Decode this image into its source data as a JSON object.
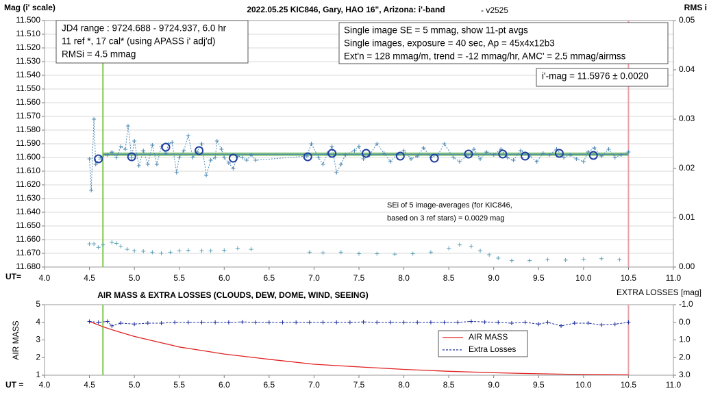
{
  "chart_data": [
    {
      "type": "scatter",
      "title": "2022.05.25 KIC846, Gary, HAO 16\", Arizona: i'-band",
      "subtitle": "- v2525",
      "ylabel": "Mag (i' scale)",
      "y2label": "RMS i",
      "xlabel": "UT=",
      "notes": [
        [
          "JD4 range : 9724.688 - 9724.937, 6.0  hr",
          "11 ref *, 17 cal* (using APASS i' adj'd)",
          "RMSi = 4.5 mmag"
        ],
        [
          "Single image SE = 5 mmag, show 11-pt avgs",
          "Single images, exposure = 40 sec, Ap = 45x4x12b3",
          "Ext'n = 128 mmag/m, trend = -12 mmag/hr, AMC' = 2.5 mmag/airmss"
        ],
        [
          "i'-mag = 11.5976 ± 0.0020"
        ],
        [
          "SEi of 5 image-averages (for KIC846,",
          "based on 3 ref stars) = 0.0029 mag"
        ]
      ],
      "xlim": [
        4,
        11
      ],
      "xticks": [
        {
          "value": 4,
          "label": "4.0"
        },
        4.5,
        {
          "value": 5,
          "label": "5.0"
        },
        5.5,
        {
          "value": 6,
          "label": "6.0"
        },
        6.5,
        {
          "value": 7,
          "label": "7.0"
        },
        7.5,
        {
          "value": 8,
          "label": "8.0"
        },
        8.5,
        {
          "value": 9,
          "label": "9.0"
        },
        9.5,
        {
          "value": 10,
          "label": "10.0"
        },
        10.5,
        {
          "value": 11,
          "label": "11.0"
        }
      ],
      "ylim": [
        11.68,
        11.5
      ],
      "yticks": [
        {
          "value": 11.5,
          "label": "11.500"
        },
        {
          "value": 11.51,
          "label": "11.510"
        },
        {
          "value": 11.52,
          "label": "11.520"
        },
        {
          "value": 11.53,
          "label": "11.530"
        },
        {
          "value": 11.54,
          "label": "11.540"
        },
        {
          "value": 11.55,
          "label": "11.550"
        },
        {
          "value": 11.56,
          "label": "11.560"
        },
        {
          "value": 11.57,
          "label": "11.570"
        },
        {
          "value": 11.58,
          "label": "11.580"
        },
        {
          "value": 11.59,
          "label": "11.590"
        },
        {
          "value": 11.6,
          "label": "11.600"
        },
        {
          "value": 11.61,
          "label": "11.610"
        },
        {
          "value": 11.62,
          "label": "11.620"
        },
        {
          "value": 11.63,
          "label": "11.630"
        },
        {
          "value": 11.64,
          "label": "11.640"
        },
        {
          "value": 11.65,
          "label": "11.650"
        },
        {
          "value": 11.66,
          "label": "11.660"
        },
        {
          "value": 11.67,
          "label": "11.670"
        },
        {
          "value": 11.68,
          "label": "11.680"
        }
      ],
      "y2lim": [
        0,
        0.05
      ],
      "y2ticks": [
        {
          "value": 0,
          "label": "0.00"
        },
        0.01,
        0.02,
        0.03,
        0.04,
        0.05
      ],
      "grid": true,
      "fit": 11.5976,
      "fit_color": "#7cbf6a",
      "vlines": [
        {
          "x": 4.65,
          "color": "#7ec850"
        },
        {
          "x": 10.5,
          "color": "#e8a0a8"
        }
      ],
      "series": [
        {
          "color": "#4a86b0",
          "marker": "plus",
          "line": "dotted",
          "x": [
            4.5,
            4.52,
            4.55,
            4.57,
            4.62,
            4.7,
            4.75,
            4.8,
            4.85,
            4.9,
            4.93,
            4.97,
            5.0,
            5.05,
            5.1,
            5.15,
            5.2,
            5.25,
            5.3,
            5.35,
            5.38,
            5.42,
            5.47,
            5.5,
            5.55,
            5.6,
            5.65,
            5.7,
            5.75,
            5.8,
            5.85,
            5.9,
            5.92,
            5.97,
            6.0,
            6.05,
            6.1,
            6.15,
            6.2,
            6.25,
            6.3,
            6.35,
            6.92,
            6.97,
            7.05,
            7.1,
            7.15,
            7.2,
            7.25,
            7.3,
            7.35,
            7.45,
            7.5,
            7.55,
            7.62,
            7.7,
            7.78,
            7.85,
            7.92,
            8.0,
            8.08,
            8.15,
            8.22,
            8.3,
            8.38,
            8.45,
            8.55,
            8.62,
            8.7,
            8.78,
            8.85,
            8.92,
            9.0,
            9.08,
            9.15,
            9.22,
            9.3,
            9.4,
            9.48,
            9.55,
            9.62,
            9.7,
            9.78,
            9.85,
            9.92,
            10.0,
            10.05,
            10.12,
            10.2,
            10.28,
            10.35,
            10.42,
            10.5
          ],
          "values": [
            11.601,
            11.624,
            11.572,
            11.605,
            11.6,
            11.598,
            11.596,
            11.6,
            11.592,
            11.594,
            11.577,
            11.6,
            11.588,
            11.606,
            11.595,
            11.605,
            11.591,
            11.605,
            11.592,
            11.597,
            11.59,
            11.589,
            11.611,
            11.6,
            11.595,
            11.584,
            11.6,
            11.596,
            11.59,
            11.613,
            11.602,
            11.6,
            11.588,
            11.594,
            11.6,
            11.604,
            11.608,
            11.599,
            11.6,
            11.602,
            11.598,
            11.602,
            11.599,
            11.59,
            11.6,
            11.605,
            11.597,
            11.592,
            11.611,
            11.605,
            11.598,
            11.595,
            11.592,
            11.601,
            11.598,
            11.59,
            11.597,
            11.603,
            11.598,
            11.595,
            11.601,
            11.599,
            11.593,
            11.6,
            11.598,
            11.59,
            11.6,
            11.603,
            11.599,
            11.594,
            11.601,
            11.596,
            11.598,
            11.594,
            11.6,
            11.602,
            11.595,
            11.599,
            11.603,
            11.597,
            11.598,
            11.594,
            11.6,
            11.598,
            11.601,
            11.603,
            11.596,
            11.593,
            11.599,
            11.594,
            11.6,
            11.598,
            11.596
          ]
        },
        {
          "color": "#1f3fa0",
          "marker": "circle",
          "x": [
            4.6,
            4.97,
            5.35,
            5.72,
            6.1,
            6.93,
            7.2,
            7.58,
            7.96,
            8.34,
            8.72,
            9.1,
            9.35,
            9.73,
            10.11
          ],
          "values": [
            11.601,
            11.5995,
            11.5925,
            11.595,
            11.6005,
            11.5995,
            11.597,
            11.597,
            11.599,
            11.6005,
            11.5975,
            11.5975,
            11.599,
            11.597,
            11.5985
          ]
        },
        {
          "color": "#5aa0b8",
          "marker": "plus",
          "axis": "y2",
          "x": [
            4.5,
            4.55,
            4.6,
            4.65,
            4.75,
            4.8,
            4.85,
            4.92,
            5.0,
            5.1,
            5.2,
            5.3,
            5.4,
            5.5,
            5.6,
            5.75,
            5.85,
            6.0,
            6.15,
            6.3,
            6.95,
            7.1,
            7.3,
            7.5,
            7.7,
            7.9,
            8.1,
            8.3,
            8.5,
            8.62,
            8.75,
            8.85,
            8.95,
            9.05,
            9.2,
            9.4,
            9.6,
            9.8,
            10.0,
            10.2,
            10.4
          ],
          "values": [
            0.0047,
            0.0047,
            0.004,
            0.0045,
            0.005,
            0.0048,
            0.0042,
            0.0036,
            0.0033,
            0.0032,
            0.003,
            0.0028,
            0.003,
            0.0033,
            0.0034,
            0.0033,
            0.0033,
            0.0034,
            0.0038,
            0.0036,
            0.003,
            0.0029,
            0.003,
            0.0027,
            0.0027,
            0.0026,
            0.0027,
            0.003,
            0.0038,
            0.0045,
            0.0042,
            0.0033,
            0.0025,
            0.0018,
            0.0013,
            0.0013,
            0.0015,
            0.0014,
            0.0016,
            0.0017,
            0.0015
          ]
        }
      ]
    },
    {
      "type": "line",
      "title": "AIR MASS & EXTRA LOSSES (CLOUDS, DEW, DOME, WIND, SEEING)",
      "ylabel": "AIR MASS",
      "y2label": "EXTRA LOSSES [mag]",
      "xlabel": "UT =",
      "xlim": [
        4,
        11
      ],
      "xticks": [
        {
          "value": 4,
          "label": "4.0"
        },
        4.5,
        {
          "value": 5,
          "label": "5.0"
        },
        5.5,
        {
          "value": 6,
          "label": "6.0"
        },
        6.5,
        {
          "value": 7,
          "label": "7.0"
        },
        7.5,
        {
          "value": 8,
          "label": "8.0"
        },
        8.5,
        {
          "value": 9,
          "label": "9.0"
        },
        9.5,
        {
          "value": 10,
          "label": "10.0"
        },
        10.5,
        {
          "value": 11,
          "label": "11.0"
        }
      ],
      "ylim": [
        1,
        5
      ],
      "yticks": [
        1,
        2,
        3,
        4,
        5
      ],
      "y2lim": [
        3,
        -1
      ],
      "y2ticks": [
        {
          "value": 3,
          "label": "3.0"
        },
        {
          "value": 2,
          "label": "2.0"
        },
        {
          "value": 1,
          "label": "1.0"
        },
        {
          "value": 0,
          "label": "0.0"
        },
        {
          "value": -1,
          "label": "-1.0"
        }
      ],
      "legend": "center",
      "vlines": [
        {
          "x": 4.65,
          "color": "#7ec850"
        },
        {
          "x": 10.5,
          "color": "#e8a0a8"
        }
      ],
      "series": [
        {
          "name": "AIR MASS",
          "color": "#e02020",
          "x": [
            4.5,
            4.65,
            4.8,
            5.0,
            5.25,
            5.5,
            5.75,
            6.0,
            6.5,
            7.0,
            7.5,
            8.0,
            8.5,
            9.0,
            9.5,
            10.0,
            10.5
          ],
          "values": [
            4.05,
            3.75,
            3.5,
            3.2,
            2.9,
            2.6,
            2.4,
            2.2,
            1.9,
            1.62,
            1.47,
            1.33,
            1.22,
            1.14,
            1.08,
            1.04,
            1.02
          ]
        },
        {
          "name": "Extra Losses",
          "color": "#1a2a9a",
          "axis": "y2",
          "marker": "plus",
          "line": "dashed",
          "x": [
            4.5,
            4.6,
            4.7,
            4.75,
            4.85,
            5.0,
            5.15,
            5.3,
            5.45,
            5.6,
            5.75,
            5.9,
            6.05,
            6.2,
            6.35,
            6.5,
            6.65,
            6.8,
            6.95,
            7.1,
            7.25,
            7.4,
            7.55,
            7.7,
            7.85,
            8.0,
            8.15,
            8.3,
            8.45,
            8.6,
            8.75,
            8.9,
            9.05,
            9.2,
            9.35,
            9.5,
            9.6,
            9.75,
            9.9,
            10.05,
            10.2,
            10.35,
            10.5
          ],
          "values": [
            -0.05,
            0,
            -0.05,
            0.2,
            0.05,
            0.1,
            0.05,
            0.05,
            0,
            0,
            0,
            0,
            0,
            -0.02,
            0,
            0,
            0,
            0,
            0,
            0,
            0,
            0,
            -0.02,
            0,
            0,
            0,
            0,
            0,
            0,
            0,
            -0.05,
            -0.02,
            0,
            0.05,
            0,
            0.1,
            0,
            0.2,
            0.05,
            0.05,
            0.15,
            0.1,
            0
          ]
        }
      ]
    }
  ]
}
